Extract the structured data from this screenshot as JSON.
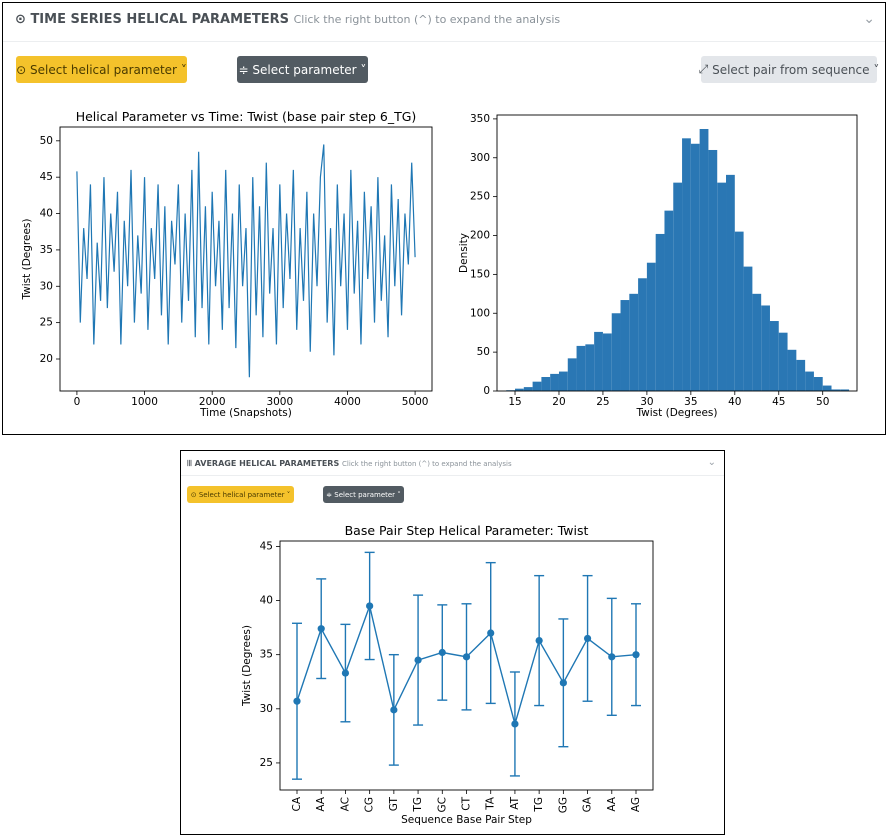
{
  "panels": [
    {
      "title": "TIME SERIES HELICAL PARAMETERS",
      "subtitle": "Click the right button (^) to expand the analysis",
      "buttons": [
        "Select helical parameter",
        "Select parameter",
        "Select pair from sequence"
      ]
    },
    {
      "title": "AVERAGE HELICAL PARAMETERS",
      "subtitle": "Click the right button (^) to expand the analysis",
      "buttons": [
        "Select helical parameter",
        "Select parameter"
      ]
    }
  ],
  "chart_data": [
    {
      "type": "line",
      "title": "Helical Parameter vs Time: Twist (base pair step 6_TG)",
      "x_label": "Time (Snapshots)",
      "y_label": "Twist (Degrees)",
      "color": "#1f77b4",
      "x": [
        0,
        50,
        100,
        150,
        200,
        250,
        300,
        350,
        400,
        450,
        500,
        550,
        600,
        650,
        700,
        750,
        800,
        850,
        900,
        950,
        1000,
        1050,
        1100,
        1150,
        1200,
        1250,
        1300,
        1350,
        1400,
        1450,
        1500,
        1550,
        1600,
        1650,
        1700,
        1750,
        1800,
        1850,
        1900,
        1950,
        2000,
        2050,
        2100,
        2150,
        2200,
        2250,
        2300,
        2350,
        2400,
        2450,
        2500,
        2550,
        2600,
        2650,
        2700,
        2750,
        2800,
        2850,
        2900,
        2950,
        3000,
        3050,
        3100,
        3150,
        3200,
        3250,
        3300,
        3350,
        3400,
        3450,
        3500,
        3550,
        3600,
        3650,
        3700,
        3750,
        3800,
        3850,
        3900,
        3950,
        4000,
        4050,
        4100,
        4150,
        4200,
        4250,
        4300,
        4350,
        4400,
        4450,
        4500,
        4550,
        4600,
        4650,
        4700,
        4750,
        4800,
        4850,
        4900,
        4950,
        5000
      ],
      "values": [
        45.8,
        25,
        38,
        31,
        44,
        22,
        36,
        28,
        45,
        27,
        40,
        32,
        43,
        22,
        39,
        30,
        46,
        25,
        37,
        29,
        45,
        24,
        38,
        31,
        44,
        26,
        41,
        22,
        39,
        33,
        44,
        25,
        40,
        28,
        46,
        23,
        48.5,
        27,
        41,
        22,
        43,
        30,
        39,
        24,
        46,
        27,
        40,
        21.5,
        44,
        30,
        38,
        17.5,
        45,
        26,
        41,
        23,
        47,
        29,
        38,
        22,
        44,
        27,
        40,
        31,
        46,
        24,
        38,
        28,
        43,
        21,
        40,
        30,
        45,
        49.5,
        25,
        38,
        20.5,
        44,
        30,
        40,
        24,
        46,
        29,
        39,
        22,
        43,
        31,
        41,
        25,
        45,
        28,
        37,
        23,
        44,
        30,
        42,
        26,
        40,
        33,
        47,
        34
      ],
      "xlim": [
        -250,
        5250
      ],
      "xticks": [
        0,
        1000,
        2000,
        3000,
        4000,
        5000
      ],
      "ylim": [
        15.6,
        51.9
      ],
      "yticks": [
        20,
        25,
        30,
        35,
        40,
        45,
        50
      ]
    },
    {
      "type": "histogram",
      "x_label": "Twist (Degrees)",
      "y_label": "Density",
      "color": "#2a77b4",
      "bins": [
        14,
        15,
        16,
        17,
        18,
        19,
        20,
        21,
        22,
        23,
        24,
        25,
        26,
        27,
        28,
        29,
        30,
        31,
        32,
        33,
        34,
        35,
        36,
        37,
        38,
        39,
        40,
        41,
        42,
        43,
        44,
        45,
        46,
        47,
        48,
        49,
        50,
        51,
        52,
        53
      ],
      "counts": [
        1,
        3,
        5,
        12,
        18,
        22,
        25,
        42,
        58,
        60,
        76,
        74,
        100,
        117,
        125,
        145,
        165,
        202,
        232,
        268,
        325,
        318,
        337,
        310,
        268,
        278,
        205,
        160,
        125,
        110,
        90,
        75,
        53,
        40,
        25,
        18,
        7,
        2,
        2
      ],
      "xlim": [
        12.95,
        53.9
      ],
      "xticks": [
        15,
        20,
        25,
        30,
        35,
        40,
        45,
        50
      ],
      "ylim": [
        0,
        355
      ],
      "yticks": [
        0,
        50,
        100,
        150,
        200,
        250,
        300,
        350
      ]
    },
    {
      "type": "errorbar",
      "title": "Base Pair Step Helical Parameter: Twist",
      "x_label": "Sequence Base Pair Step",
      "y_label": "Twist (Degrees)",
      "color": "#1f77b4",
      "categories": [
        "CA",
        "AA",
        "AC",
        "CG",
        "GT",
        "TG",
        "GC",
        "CT",
        "TA",
        "AT",
        "TG",
        "GG",
        "GA",
        "AA",
        "AG"
      ],
      "values": [
        30.7,
        37.4,
        33.3,
        39.5,
        29.9,
        34.5,
        35.2,
        34.8,
        37.0,
        28.6,
        36.3,
        32.4,
        36.5,
        34.8,
        35.0
      ],
      "errors": [
        7.2,
        4.6,
        4.5,
        4.95,
        5.1,
        6.0,
        4.4,
        4.9,
        6.5,
        4.8,
        6.0,
        5.9,
        5.8,
        5.4,
        4.7
      ],
      "ylim": [
        22.5,
        45.5
      ],
      "yticks": [
        25,
        30,
        35,
        40,
        45
      ]
    }
  ]
}
